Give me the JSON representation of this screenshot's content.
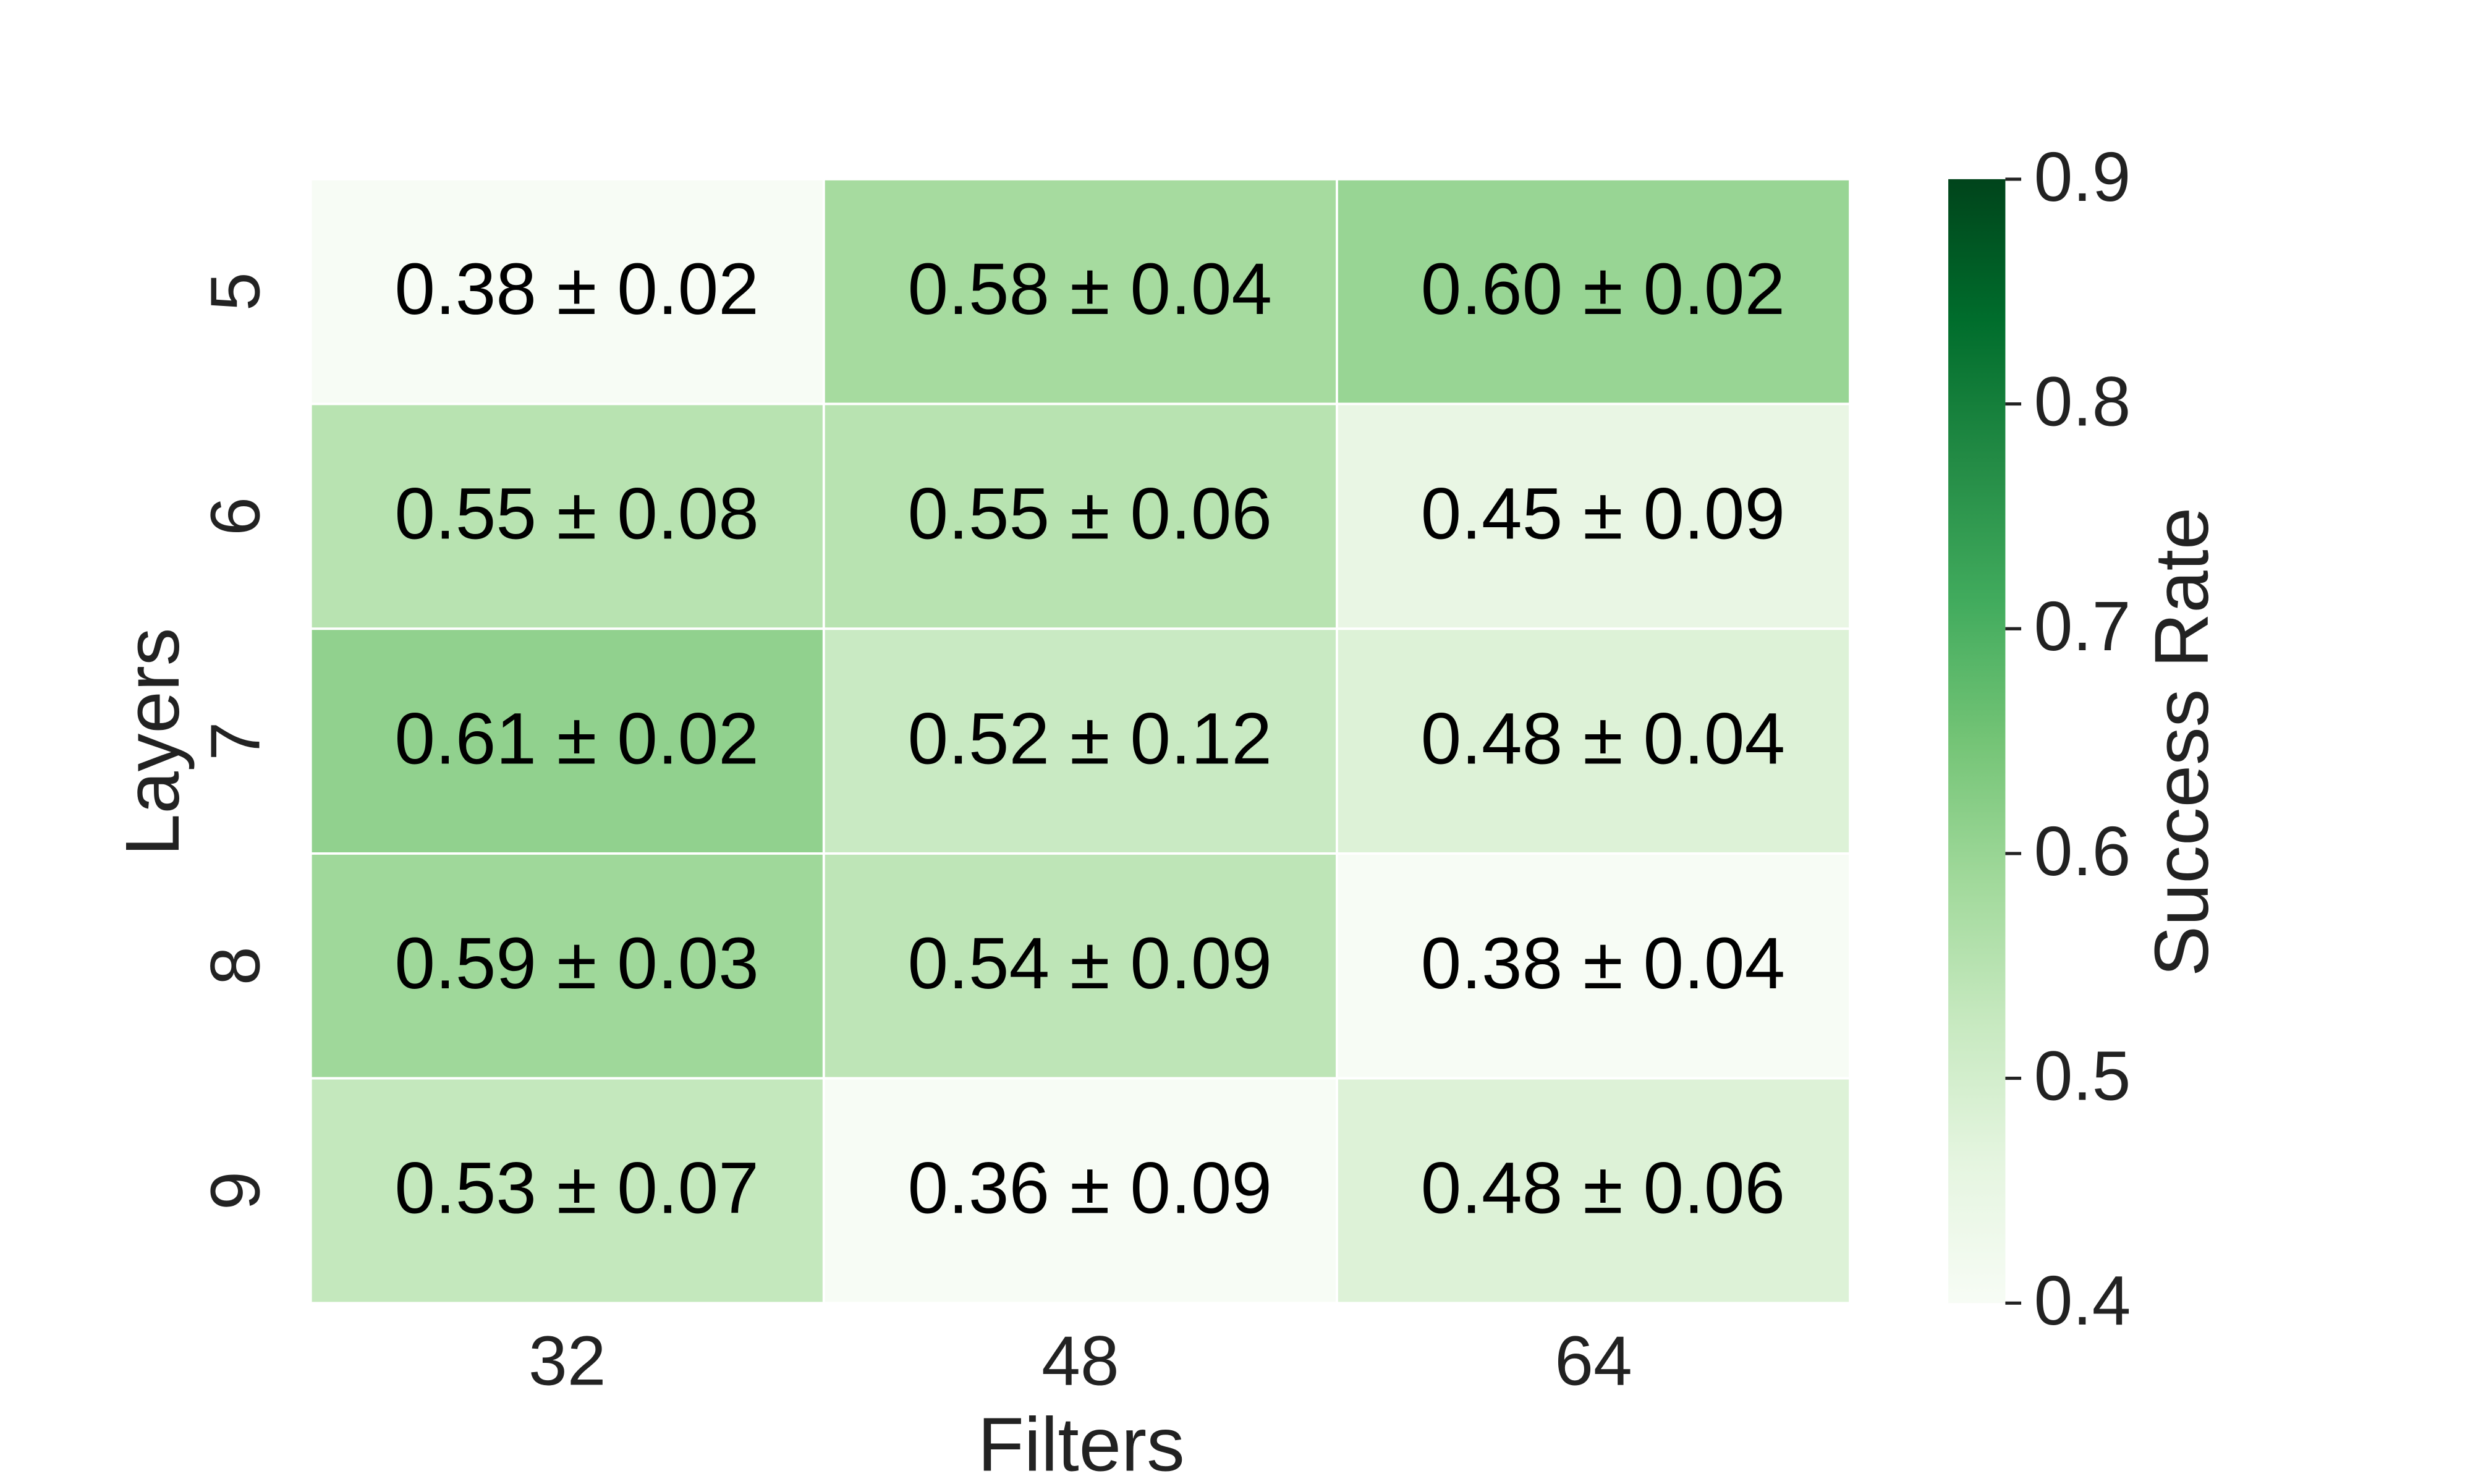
{
  "chart_data": {
    "type": "heatmap",
    "x_label": "Filters",
    "y_label": "Layers",
    "x_categories": [
      "32",
      "48",
      "64"
    ],
    "y_categories": [
      "5",
      "6",
      "7",
      "8",
      "9"
    ],
    "values": [
      [
        0.38,
        0.58,
        0.6
      ],
      [
        0.55,
        0.55,
        0.45
      ],
      [
        0.61,
        0.52,
        0.48
      ],
      [
        0.59,
        0.54,
        0.38
      ],
      [
        0.53,
        0.36,
        0.48
      ]
    ],
    "errors": [
      [
        0.02,
        0.04,
        0.02
      ],
      [
        0.08,
        0.06,
        0.09
      ],
      [
        0.02,
        0.12,
        0.04
      ],
      [
        0.03,
        0.09,
        0.04
      ],
      [
        0.07,
        0.09,
        0.06
      ]
    ],
    "value_labels": [
      [
        "0.38 ± 0.02",
        "0.58 ± 0.04",
        "0.60 ± 0.02"
      ],
      [
        "0.55 ± 0.08",
        "0.55 ± 0.06",
        "0.45 ± 0.09"
      ],
      [
        "0.61 ± 0.02",
        "0.52 ± 0.12",
        "0.48 ± 0.04"
      ],
      [
        "0.59 ± 0.03",
        "0.54 ± 0.09",
        "0.38 ± 0.04"
      ],
      [
        "0.53 ± 0.07",
        "0.36 ± 0.09",
        "0.48 ± 0.06"
      ]
    ],
    "colorbar_label": "Success Rate",
    "clim": [
      0.4,
      0.9
    ],
    "cticks": [
      0.4,
      0.5,
      0.6,
      0.7,
      0.8,
      0.9
    ],
    "colormap": [
      "#f7fcf5",
      "#e5f5e0",
      "#c7e9c0",
      "#a1d99b",
      "#74c476",
      "#41ab5d",
      "#238b45",
      "#006d2c",
      "#00441b"
    ]
  }
}
